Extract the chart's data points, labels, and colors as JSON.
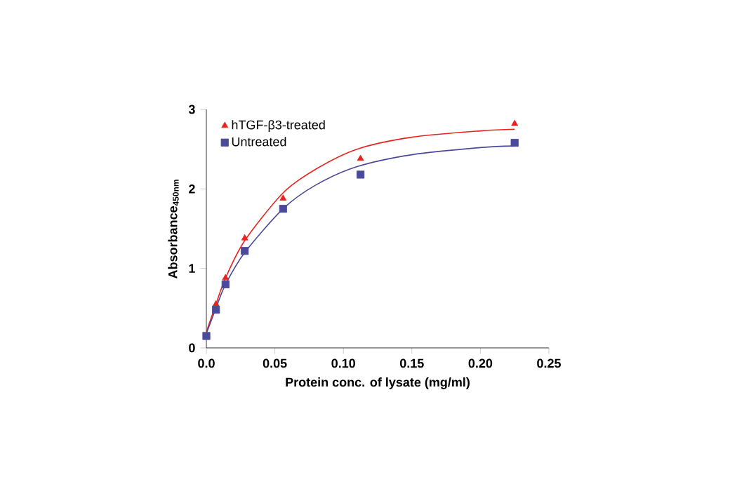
{
  "chart_data": {
    "type": "scatter",
    "xlabel": "Protein conc. of lysate (mg/ml)",
    "ylabel": "Absorbance$_{450nm}$",
    "xlim": [
      0,
      0.25
    ],
    "ylim": [
      0,
      3
    ],
    "xticks": [
      {
        "value": 0,
        "label": "0.0"
      },
      0.05,
      {
        "value": 0.1,
        "label": "0.10"
      },
      0.15,
      {
        "value": 0.2,
        "label": "0.20"
      },
      0.25
    ],
    "yticks": [
      0,
      1,
      2,
      3
    ],
    "grid": false,
    "legend": "top left",
    "series": [
      {
        "name": "hTGF-β3-treated",
        "color": "#e8231e",
        "marker": "triangle",
        "x": [
          0.007,
          0.014,
          0.028,
          0.056,
          0.1125,
          0.225
        ],
        "values": [
          0.55,
          0.88,
          1.38,
          1.88,
          2.38,
          2.82
        ]
      },
      {
        "name": "Untreated",
        "color": "#4b4a9a",
        "marker": "square",
        "x": [
          0,
          0.007,
          0.014,
          0.028,
          0.056,
          0.1125,
          0.225
        ],
        "values": [
          0.15,
          0.48,
          0.8,
          1.22,
          1.75,
          2.18,
          2.58
        ]
      },
      {
        "type": "line",
        "color": "#e8231e",
        "marker": "none",
        "x": [
          0,
          0.007,
          0.014,
          0.028,
          0.056,
          0.08,
          0.11,
          0.15,
          0.2,
          0.225
        ],
        "values": [
          0.2,
          0.55,
          0.88,
          1.35,
          1.95,
          2.25,
          2.5,
          2.65,
          2.73,
          2.75
        ]
      },
      {
        "type": "line",
        "color": "#4b4a9a",
        "marker": "none",
        "x": [
          0,
          0.007,
          0.014,
          0.028,
          0.056,
          0.08,
          0.11,
          0.15,
          0.2,
          0.225
        ],
        "values": [
          0.18,
          0.5,
          0.8,
          1.2,
          1.75,
          2.05,
          2.28,
          2.43,
          2.52,
          2.54
        ]
      }
    ]
  }
}
